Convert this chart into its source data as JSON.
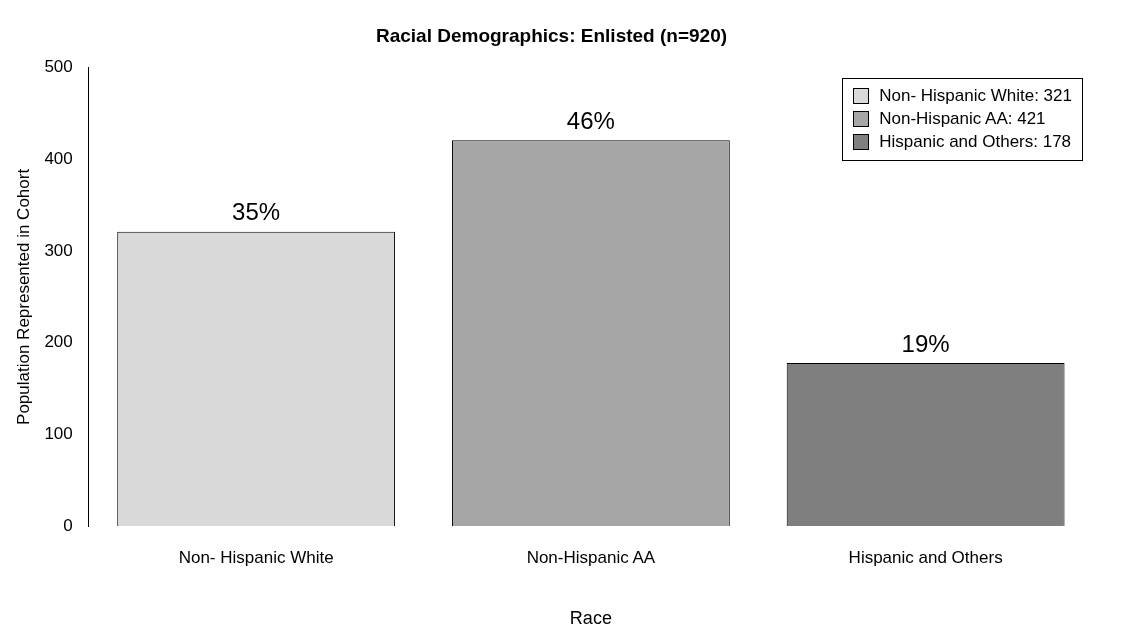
{
  "chart_data": {
    "type": "bar",
    "title": "Racial Demographics: Enlisted (n=920)",
    "xlabel": "Race",
    "ylabel": "Population Represented in Cohort",
    "categories": [
      "Non- Hispanic White",
      "Non-Hispanic AA",
      "Hispanic and Others"
    ],
    "series": [
      {
        "name": "Non- Hispanic White: 321",
        "color": "#d9d9d9",
        "values": [
          321,
          null,
          null
        ]
      },
      {
        "name": "Non-Hispanic AA: 421",
        "color": "#a6a6a6",
        "values": [
          null,
          421,
          null
        ]
      },
      {
        "name": "Hispanic and Others: 178",
        "color": "#7f7f7f",
        "values": [
          null,
          null,
          178
        ]
      }
    ],
    "annotations": [
      {
        "text": "35%",
        "x": "Non- Hispanic White",
        "y": 321
      },
      {
        "text": "46%",
        "x": "Non-Hispanic AA",
        "y": 421
      },
      {
        "text": "19%",
        "x": "Hispanic and Others",
        "y": 178
      }
    ],
    "ylim": [
      0,
      500
    ],
    "yticks": [
      0,
      100,
      200,
      300,
      400,
      500
    ],
    "legend": "top right"
  }
}
